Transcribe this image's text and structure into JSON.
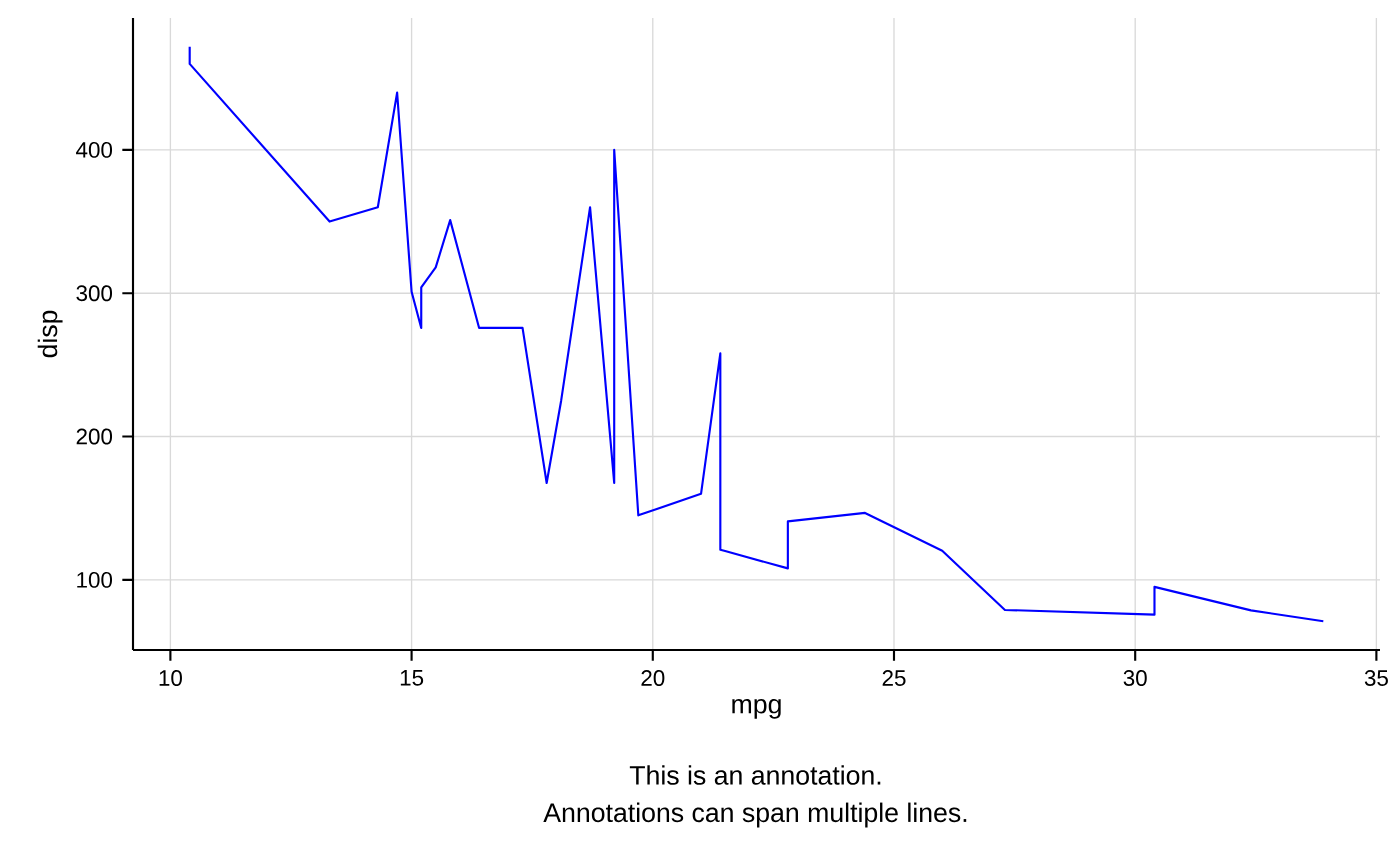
{
  "chart_data": {
    "type": "line",
    "xlabel": "mpg",
    "ylabel": "disp",
    "annotations": [
      "This is an annotation.",
      "Annotations can span multiple lines."
    ],
    "x": [
      10.4,
      10.4,
      13.3,
      14.3,
      14.7,
      15.0,
      15.2,
      15.2,
      15.5,
      15.8,
      16.4,
      17.3,
      17.8,
      18.1,
      18.7,
      19.2,
      19.2,
      19.7,
      21.0,
      21.0,
      21.4,
      21.4,
      21.5,
      22.8,
      22.8,
      24.4,
      26.0,
      27.3,
      30.4,
      30.4,
      32.4,
      33.9
    ],
    "series": [
      {
        "color": "#0000ff",
        "values": [
          472,
          460,
          350,
          360,
          440,
          301,
          275.8,
          304,
          318,
          351,
          275.8,
          275.8,
          167.6,
          225,
          360,
          167.6,
          400,
          145,
          160,
          160,
          258,
          121,
          120.1,
          108,
          140.8,
          146.7,
          120.3,
          79,
          75.7,
          95.1,
          78.7,
          71.1
        ]
      }
    ],
    "xlim": [
      9.225,
      35.075
    ],
    "ylim": [
      51.055,
      492.045
    ],
    "xticks": [
      10,
      15,
      20,
      25,
      30,
      35
    ],
    "yticks": [
      100,
      200,
      300,
      400
    ],
    "grid": true
  }
}
